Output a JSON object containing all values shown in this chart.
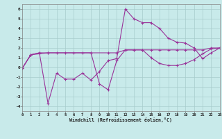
{
  "xlabel": "Windchill (Refroidissement éolien,°C)",
  "xlim": [
    0,
    23
  ],
  "ylim": [
    -4.5,
    6.5
  ],
  "xticks": [
    0,
    1,
    2,
    3,
    4,
    5,
    6,
    7,
    8,
    9,
    10,
    11,
    12,
    13,
    14,
    15,
    16,
    17,
    18,
    19,
    20,
    21,
    22,
    23
  ],
  "yticks": [
    -4,
    -3,
    -2,
    -1,
    0,
    1,
    2,
    3,
    4,
    5,
    6
  ],
  "bg_color": "#c8eaea",
  "grid_color": "#a8cccc",
  "line_color": "#993399",
  "line1_x": [
    0,
    1,
    2,
    3,
    4,
    5,
    6,
    7,
    8,
    9,
    10,
    11,
    12,
    13,
    14,
    15,
    16,
    17,
    18,
    19,
    20,
    21,
    22,
    23
  ],
  "line1_y": [
    -0.1,
    1.3,
    1.5,
    -3.7,
    -0.6,
    -1.2,
    -1.2,
    -0.6,
    -1.3,
    -0.4,
    0.7,
    0.9,
    6.0,
    5.0,
    4.6,
    4.6,
    4.0,
    3.0,
    2.6,
    2.5,
    2.0,
    0.9,
    1.5,
    2.0
  ],
  "line2_x": [
    0,
    1,
    3,
    4,
    5,
    6,
    7,
    8,
    10,
    11,
    12,
    13,
    14,
    15,
    16,
    17,
    18,
    19,
    20,
    21,
    22,
    23
  ],
  "line2_y": [
    -0.1,
    1.3,
    1.5,
    1.5,
    1.5,
    1.5,
    1.5,
    1.5,
    1.5,
    1.5,
    1.8,
    1.8,
    1.8,
    1.8,
    1.8,
    1.8,
    1.8,
    1.8,
    1.8,
    1.8,
    2.0,
    2.0
  ],
  "line3_x": [
    0,
    1,
    2,
    3,
    8,
    9,
    10,
    11,
    12,
    13,
    14,
    15,
    16,
    17,
    18,
    19,
    20,
    21,
    22,
    23
  ],
  "line3_y": [
    -0.1,
    1.3,
    1.5,
    1.5,
    1.5,
    -1.7,
    -2.3,
    0.7,
    1.8,
    1.8,
    1.8,
    1.0,
    0.4,
    0.2,
    0.2,
    0.4,
    0.8,
    1.4,
    1.9,
    2.0
  ]
}
